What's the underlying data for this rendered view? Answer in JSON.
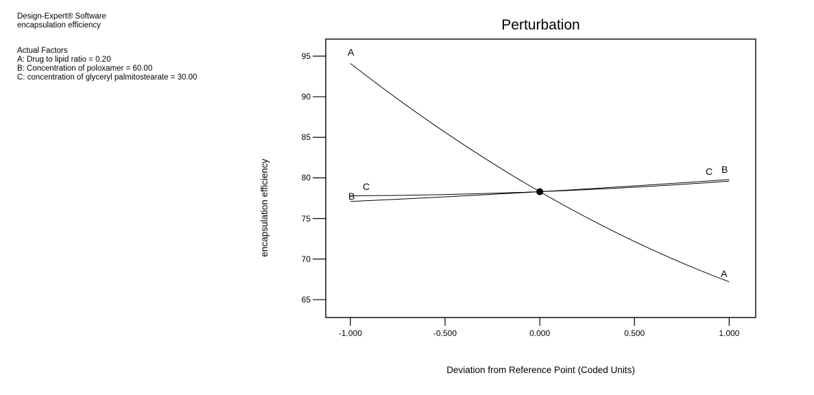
{
  "info_panel": {
    "software": "Design-Expert® Software",
    "response": "encapsulation efficiency",
    "actual_factors_heading": "Actual Factors",
    "factors": [
      "A: Drug to lipid ratio = 0.20",
      "B: Concentration of poloxamer = 60.00",
      "C: concentration of glyceryl palmitostearate = 30.00"
    ]
  },
  "chart_data": {
    "type": "line",
    "title": "Perturbation",
    "xlabel": "Deviation from Reference Point (Coded Units)",
    "ylabel": "encapsulation efficiency",
    "x_tick_labels": [
      "-1.000",
      "-0.500",
      "0.000",
      "0.500",
      "1.000"
    ],
    "x_tick_values": [
      -1,
      -0.5,
      0,
      0.5,
      1
    ],
    "y_tick_labels": [
      "95",
      "90",
      "85",
      "80",
      "75",
      "70",
      "65"
    ],
    "y_tick_values": [
      95,
      90,
      85,
      80,
      75,
      70,
      65
    ],
    "xlim": [
      -1.13,
      1.14
    ],
    "ylim": [
      62.8,
      97.1
    ],
    "grid": false,
    "legend_position": "none",
    "line_color": "#000000",
    "background_color": "#ffffff",
    "series": [
      {
        "name": "factor-A",
        "label": "A",
        "x": [
          -1,
          0,
          1
        ],
        "y": [
          94.1,
          78.3,
          67.2
        ]
      },
      {
        "name": "factor-B",
        "label": "B",
        "x": [
          -1,
          0,
          1
        ],
        "y": [
          77.1,
          78.3,
          79.8
        ]
      },
      {
        "name": "factor-C",
        "label": "C",
        "x": [
          -1,
          0,
          1
        ],
        "y": [
          77.8,
          78.3,
          79.6
        ]
      }
    ],
    "reference_point": {
      "x": 0,
      "y": 78.3
    }
  }
}
